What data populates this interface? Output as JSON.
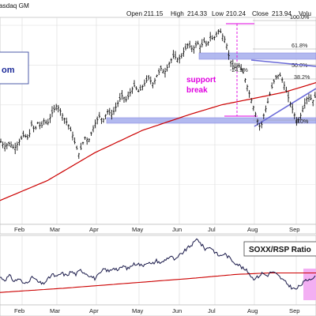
{
  "chart_data": [
    {
      "type": "ohlc",
      "header": {
        "symbol_text": "asdaq GM",
        "open_label": "Open",
        "open": "211.15",
        "high_label": "High",
        "high": "214.33",
        "low_label": "Low",
        "low": "210.24",
        "close_label": "Close",
        "close": "213.94",
        "volume_label": "Volu"
      },
      "x_labels": [
        "Feb",
        "Mar",
        "Apr",
        "May",
        "Jun",
        "Jul",
        "Aug",
        "Sep"
      ],
      "price_anchors": [
        [
          0,
          105
        ],
        [
          6,
          98
        ],
        [
          12,
          102
        ],
        [
          18,
          95
        ],
        [
          24,
          104
        ],
        [
          30,
          112
        ],
        [
          36,
          108
        ],
        [
          40,
          125
        ],
        [
          44,
          118
        ],
        [
          48,
          128
        ],
        [
          52,
          122
        ],
        [
          56,
          131
        ],
        [
          60,
          126
        ],
        [
          66,
          140
        ],
        [
          72,
          150
        ],
        [
          76,
          143
        ],
        [
          80,
          135
        ],
        [
          86,
          126
        ],
        [
          92,
          112
        ],
        [
          96,
          98
        ],
        [
          100,
          88
        ],
        [
          104,
          100
        ],
        [
          108,
          110
        ],
        [
          112,
          104
        ],
        [
          116,
          116
        ],
        [
          120,
          126
        ],
        [
          126,
          136
        ],
        [
          130,
          130
        ],
        [
          136,
          142
        ],
        [
          142,
          138
        ],
        [
          148,
          150
        ],
        [
          154,
          162
        ],
        [
          160,
          156
        ],
        [
          166,
          168
        ],
        [
          170,
          174
        ],
        [
          176,
          166
        ],
        [
          182,
          176
        ],
        [
          188,
          184
        ],
        [
          194,
          176
        ],
        [
          198,
          186
        ],
        [
          204,
          196
        ],
        [
          208,
          190
        ],
        [
          214,
          202
        ],
        [
          220,
          212
        ],
        [
          226,
          206
        ],
        [
          232,
          216
        ],
        [
          238,
          226
        ],
        [
          244,
          220
        ],
        [
          250,
          228
        ],
        [
          254,
          222
        ],
        [
          258,
          230
        ],
        [
          262,
          224
        ],
        [
          266,
          236
        ],
        [
          270,
          232
        ],
        [
          274,
          240
        ],
        [
          278,
          244
        ],
        [
          282,
          236
        ],
        [
          286,
          230
        ],
        [
          290,
          210
        ],
        [
          296,
          196
        ],
        [
          302,
          200
        ],
        [
          308,
          190
        ],
        [
          314,
          170
        ],
        [
          320,
          150
        ],
        [
          326,
          130
        ],
        [
          330,
          120
        ],
        [
          334,
          138
        ],
        [
          338,
          150
        ],
        [
          342,
          165
        ],
        [
          346,
          178
        ],
        [
          350,
          186
        ],
        [
          354,
          188
        ],
        [
          358,
          180
        ],
        [
          362,
          168
        ],
        [
          366,
          156
        ],
        [
          372,
          140
        ],
        [
          376,
          128
        ],
        [
          380,
          135
        ],
        [
          384,
          148
        ],
        [
          388,
          158
        ],
        [
          392,
          160
        ],
        [
          396,
          155
        ],
        [
          400,
          162
        ]
      ],
      "moving_average": {
        "color": "#cc0000",
        "anchors": [
          [
            0,
            30
          ],
          [
            60,
            55
          ],
          [
            120,
            90
          ],
          [
            180,
            118
          ],
          [
            240,
            138
          ],
          [
            280,
            150
          ],
          [
            320,
            158
          ],
          [
            360,
            166
          ],
          [
            400,
            178
          ]
        ]
      },
      "annotations": {
        "fib_100": "100.0%",
        "fib_618": "61.8%",
        "fib_500": "50.0%",
        "fib_382": "38.2%",
        "fib_0": "0.0%",
        "gap_label": "-24.9%",
        "break_label_1": "support",
        "break_label_2": "break",
        "left_box_text": "om"
      },
      "colors": {
        "price": "#111111",
        "support_zone": "#7f7fe0",
        "break": "#e000e0",
        "fib_line": "#888888"
      }
    },
    {
      "type": "line",
      "legend": "SOXX/RSP Ratio",
      "ratio_anchors": [
        [
          0,
          40
        ],
        [
          6,
          36
        ],
        [
          12,
          42
        ],
        [
          18,
          34
        ],
        [
          24,
          38
        ],
        [
          30,
          30
        ],
        [
          36,
          35
        ],
        [
          42,
          40
        ],
        [
          48,
          33
        ],
        [
          54,
          30
        ],
        [
          60,
          36
        ],
        [
          66,
          44
        ],
        [
          72,
          40
        ],
        [
          78,
          46
        ],
        [
          84,
          42
        ],
        [
          90,
          48
        ],
        [
          96,
          44
        ],
        [
          102,
          50
        ],
        [
          108,
          46
        ],
        [
          114,
          42
        ],
        [
          120,
          38
        ],
        [
          126,
          44
        ],
        [
          132,
          52
        ],
        [
          138,
          48
        ],
        [
          144,
          54
        ],
        [
          150,
          50
        ],
        [
          156,
          56
        ],
        [
          162,
          52
        ],
        [
          168,
          58
        ],
        [
          174,
          60
        ],
        [
          180,
          56
        ],
        [
          186,
          62
        ],
        [
          192,
          58
        ],
        [
          198,
          64
        ],
        [
          204,
          60
        ],
        [
          210,
          66
        ],
        [
          216,
          70
        ],
        [
          222,
          64
        ],
        [
          228,
          72
        ],
        [
          234,
          78
        ],
        [
          240,
          84
        ],
        [
          246,
          90
        ],
        [
          250,
          96
        ],
        [
          254,
          88
        ],
        [
          260,
          80
        ],
        [
          266,
          84
        ],
        [
          272,
          76
        ],
        [
          278,
          70
        ],
        [
          284,
          74
        ],
        [
          290,
          68
        ],
        [
          296,
          62
        ],
        [
          302,
          58
        ],
        [
          308,
          52
        ],
        [
          314,
          48
        ],
        [
          320,
          38
        ],
        [
          326,
          40
        ],
        [
          332,
          46
        ],
        [
          338,
          42
        ],
        [
          344,
          48
        ],
        [
          350,
          44
        ],
        [
          356,
          38
        ],
        [
          362,
          32
        ],
        [
          368,
          26
        ],
        [
          374,
          22
        ],
        [
          380,
          28
        ],
        [
          386,
          34
        ],
        [
          392,
          38
        ],
        [
          398,
          40
        ]
      ],
      "moving_average": {
        "color": "#cc0000",
        "anchors": [
          [
            0,
            18
          ],
          [
            80,
            24
          ],
          [
            160,
            31
          ],
          [
            240,
            38
          ],
          [
            300,
            44
          ],
          [
            340,
            46
          ],
          [
            400,
            46
          ]
        ]
      },
      "colors": {
        "line": "#1a1a4a",
        "highlight": "#f2a6f2"
      }
    }
  ]
}
